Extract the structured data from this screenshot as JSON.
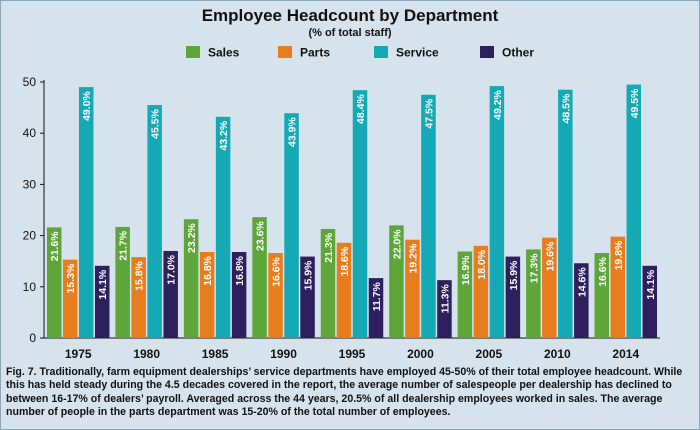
{
  "colors": {
    "background": "#d6e3ec",
    "sales": "#5ea63a",
    "parts": "#e87d1e",
    "service": "#14a9b5",
    "other": "#2e1f5e"
  },
  "caption": "Fig. 7. Traditionally, farm equipment dealerships’ service departments have employed 45-50% of their total employee headcount. While this has held steady during the 4.5 decades covered in the report, the average number of salespeople per dealership has declined to between 16-17% of dealers’ payroll. Averaged across the 44 years, 20.5% of all dealership employees worked in sales. The average number of people in the parts department was 15-20% of the total number of employees.",
  "chart_data": {
    "type": "bar",
    "title": "Employee Headcount by Department",
    "subtitle": "(% of total staff)",
    "categories": [
      "1975",
      "1980",
      "1985",
      "1990",
      "1995",
      "2000",
      "2005",
      "2010",
      "2014"
    ],
    "ylim": [
      0,
      50
    ],
    "yticks": [
      0,
      10,
      20,
      30,
      40,
      50
    ],
    "grid": false,
    "legend_position": "top",
    "series": [
      {
        "name": "Sales",
        "color": "#5ea63a",
        "values": [
          21.6,
          21.7,
          23.2,
          23.6,
          21.3,
          22.0,
          16.9,
          17.3,
          16.6
        ],
        "labels": [
          "21.6%",
          "21.7%",
          "23.2%",
          "23.6%",
          "21.3%",
          "22.0%",
          "16.9%",
          "17.3%",
          "16.6%"
        ]
      },
      {
        "name": "Parts",
        "color": "#e87d1e",
        "values": [
          15.3,
          15.8,
          16.8,
          16.6,
          18.6,
          19.2,
          18.0,
          19.6,
          19.8
        ],
        "labels": [
          "15.3%",
          "15.8%",
          "16.8%",
          "16.6%",
          "18.6%",
          "19.2%",
          "18.0%",
          "19.6%",
          "19.8%"
        ]
      },
      {
        "name": "Service",
        "color": "#14a9b5",
        "values": [
          49.0,
          45.5,
          43.2,
          43.9,
          48.4,
          47.5,
          49.2,
          48.5,
          49.5
        ],
        "labels": [
          "49.0%",
          "45.5%",
          "43.2%",
          "43.9%",
          "48.4%",
          "47.5%",
          "49.2%",
          "48.5%",
          "49.5%"
        ]
      },
      {
        "name": "Other",
        "color": "#2e1f5e",
        "values": [
          14.1,
          17.0,
          16.8,
          15.9,
          11.7,
          11.3,
          15.9,
          14.6,
          14.1
        ],
        "labels": [
          "14.1%",
          "17.0%",
          "16.8%",
          "15.9%",
          "11.7%",
          "11.3%",
          "15.9%",
          "14.6%",
          "14.1%"
        ]
      }
    ]
  }
}
